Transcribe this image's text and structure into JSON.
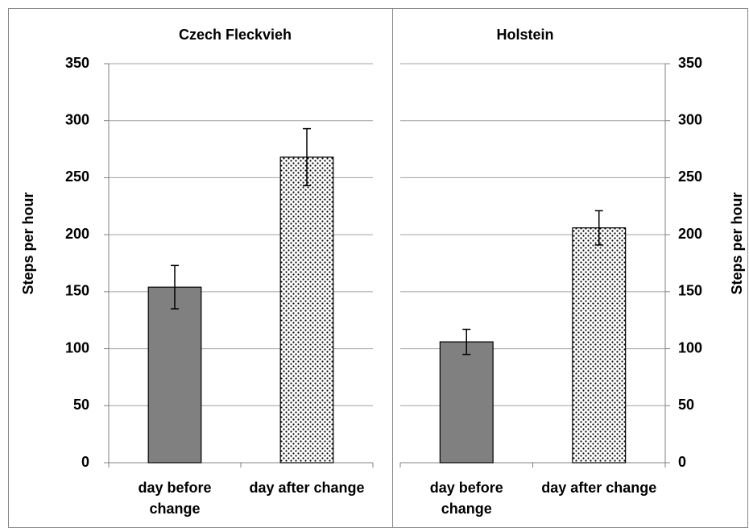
{
  "chart_data": [
    {
      "type": "bar",
      "title": "Czech Fleckvieh",
      "ylabel": "Steps per hour",
      "categories": [
        "day before change",
        "day after change"
      ],
      "values": [
        154,
        268
      ],
      "errors": [
        19,
        25
      ],
      "colors": [
        "#808080",
        "#ffffff"
      ],
      "patterns": [
        "solid",
        "dotted"
      ],
      "ylim": [
        0,
        350
      ],
      "yticks": [
        0,
        50,
        100,
        150,
        200,
        250,
        300,
        350
      ],
      "grid": true,
      "yaxis_side": "left"
    },
    {
      "type": "bar",
      "title": "Holstein",
      "ylabel": "Steps per hour",
      "categories": [
        "day before change",
        "day after change"
      ],
      "values": [
        106,
        206
      ],
      "errors": [
        11,
        15
      ],
      "colors": [
        "#808080",
        "#ffffff"
      ],
      "patterns": [
        "solid",
        "dotted"
      ],
      "ylim": [
        0,
        350
      ],
      "yticks": [
        0,
        50,
        100,
        150,
        200,
        250,
        300,
        350
      ],
      "grid": true,
      "yaxis_side": "right"
    }
  ]
}
